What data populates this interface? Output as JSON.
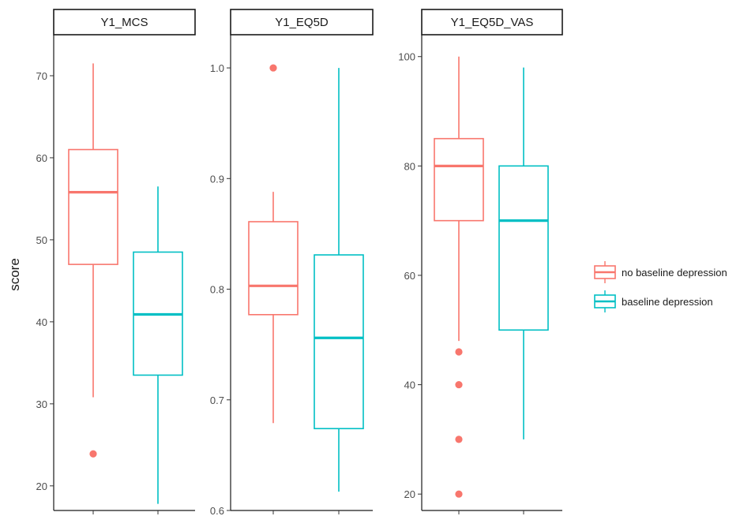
{
  "chart_data": {
    "type": "boxplot",
    "ylabel": "score",
    "legend": {
      "placement": "right",
      "entries": [
        {
          "name": "no baseline depression",
          "color": "#F8766D"
        },
        {
          "name": "baseline depression",
          "color": "#00BFC4"
        }
      ]
    },
    "panels": [
      {
        "title": "Y1_MCS",
        "ylim": [
          17,
          75
        ],
        "yticks": [
          20,
          30,
          40,
          50,
          60,
          70
        ],
        "boxes": [
          {
            "group": "no baseline depression",
            "lower_whisker": 30.8,
            "q1": 47,
            "median": 55.8,
            "q3": 61,
            "upper_whisker": 71.5,
            "outliers": [
              23.9
            ]
          },
          {
            "group": "baseline depression",
            "lower_whisker": 17.8,
            "q1": 33.5,
            "median": 40.9,
            "q3": 48.5,
            "upper_whisker": 56.5,
            "outliers": []
          }
        ]
      },
      {
        "title": "Y1_EQ5D",
        "ylim": [
          0.6,
          1.03
        ],
        "yticks": [
          0.6,
          0.7,
          0.8,
          0.9,
          1.0
        ],
        "yticklabels": [
          "0.6",
          "0.7",
          "0.8",
          "0.9",
          "1.0"
        ],
        "boxes": [
          {
            "group": "no baseline depression",
            "lower_whisker": 0.679,
            "q1": 0.777,
            "median": 0.803,
            "q3": 0.861,
            "upper_whisker": 0.888,
            "outliers": [
              1.0
            ]
          },
          {
            "group": "baseline depression",
            "lower_whisker": 0.617,
            "q1": 0.674,
            "median": 0.756,
            "q3": 0.831,
            "upper_whisker": 1.0,
            "outliers": []
          }
        ]
      },
      {
        "title": "Y1_EQ5D_VAS",
        "ylim": [
          17,
          104
        ],
        "yticks": [
          20,
          40,
          60,
          80,
          100
        ],
        "boxes": [
          {
            "group": "no baseline depression",
            "lower_whisker": 48,
            "q1": 70,
            "median": 80,
            "q3": 85,
            "upper_whisker": 100,
            "outliers": [
              46,
              40,
              30,
              20
            ]
          },
          {
            "group": "baseline depression",
            "lower_whisker": 30,
            "q1": 50,
            "median": 70,
            "q3": 80,
            "upper_whisker": 98,
            "outliers": []
          }
        ]
      }
    ]
  }
}
